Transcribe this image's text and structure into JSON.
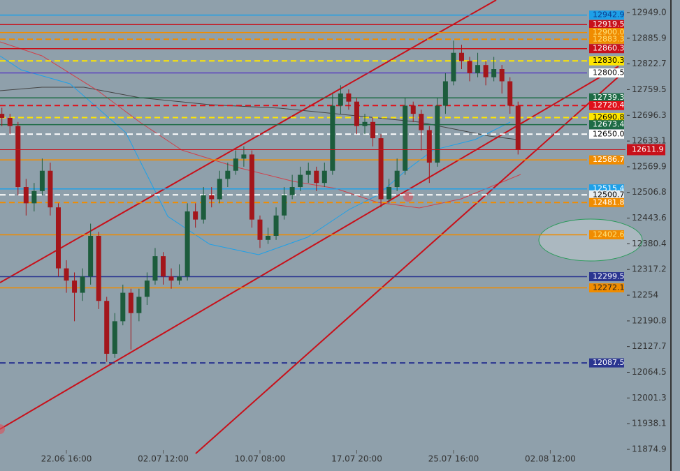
{
  "chart_data": {
    "type": "candlestick",
    "categories": [
      null,
      null,
      null,
      null,
      null,
      null,
      null,
      null,
      "22.06 16:00",
      null,
      null,
      null,
      null,
      null,
      null,
      null,
      null,
      null,
      null,
      null,
      "02.07 12:00",
      null,
      null,
      null,
      null,
      null,
      null,
      null,
      null,
      null,
      null,
      null,
      "10.07 08:00",
      null,
      null,
      null,
      null,
      null,
      null,
      null,
      null,
      null,
      null,
      null,
      "17.07 20:00",
      null,
      null,
      null,
      null,
      null,
      null,
      null,
      null,
      null,
      null,
      null,
      "25.07 16:00",
      null,
      null,
      null,
      null,
      null,
      null,
      null,
      null,
      null,
      null,
      null,
      "02.08 12:00"
    ],
    "open": [
      12700,
      12690,
      12670,
      12520,
      12480,
      12510,
      12560,
      12470,
      12320,
      12290,
      12260,
      12300,
      12400,
      12240,
      12110,
      12190,
      12260,
      12210,
      12250,
      12290,
      12350,
      12300,
      12290,
      12300,
      12460,
      12440,
      12500,
      12490,
      12540,
      12560,
      12590,
      12600,
      12440,
      12390,
      12400,
      12450,
      12500,
      12520,
      12550,
      12560,
      12530,
      12560,
      12720,
      12750,
      12730,
      12670,
      12680,
      12640,
      12490,
      12520,
      12560,
      12720,
      12700,
      12660,
      12580,
      12720,
      12780,
      12850,
      12830,
      12800,
      12820,
      12790,
      12810,
      12780,
      12720,
      null,
      null,
      null,
      null
    ],
    "high": [
      12715,
      12700,
      12680,
      12540,
      12530,
      12590,
      12580,
      12480,
      12340,
      12310,
      12320,
      12430,
      12410,
      12250,
      12210,
      12280,
      12270,
      12270,
      12310,
      12370,
      12360,
      12320,
      12330,
      12480,
      12480,
      12520,
      12520,
      12560,
      12580,
      12610,
      12620,
      12610,
      12450,
      12420,
      12470,
      12520,
      12550,
      12570,
      12580,
      12570,
      12580,
      12750,
      12770,
      12760,
      12740,
      12700,
      12690,
      12650,
      12540,
      12590,
      12740,
      12730,
      12710,
      12670,
      12740,
      12800,
      12880,
      12870,
      12840,
      12850,
      12830,
      12840,
      12820,
      12790,
      12730,
      null,
      null,
      null,
      null
    ],
    "low": [
      12670,
      12650,
      12500,
      12450,
      12460,
      12500,
      12450,
      12300,
      12260,
      12190,
      12240,
      12280,
      12220,
      12090,
      12100,
      12180,
      12120,
      12190,
      12230,
      12280,
      12280,
      12270,
      12280,
      12290,
      12420,
      12430,
      12470,
      12480,
      12520,
      12550,
      12570,
      12420,
      12370,
      12380,
      12390,
      12440,
      12490,
      12510,
      12530,
      12510,
      12520,
      12550,
      12700,
      12710,
      12650,
      12650,
      12620,
      12470,
      12480,
      12510,
      12550,
      12680,
      12610,
      12530,
      12570,
      12700,
      12770,
      12810,
      12780,
      12790,
      12770,
      12780,
      12750,
      12700,
      12600,
      null,
      null,
      null,
      null
    ],
    "close": [
      12690,
      12670,
      12520,
      12480,
      12510,
      12560,
      12470,
      12320,
      12290,
      12260,
      12300,
      12400,
      12240,
      12110,
      12190,
      12260,
      12210,
      12250,
      12290,
      12350,
      12300,
      12290,
      12300,
      12460,
      12440,
      12500,
      12490,
      12540,
      12560,
      12590,
      12600,
      12440,
      12390,
      12400,
      12450,
      12500,
      12520,
      12550,
      12560,
      12530,
      12560,
      12720,
      12750,
      12730,
      12670,
      12680,
      12640,
      12490,
      12520,
      12560,
      12720,
      12700,
      12660,
      12580,
      12720,
      12780,
      12850,
      12830,
      12800,
      12820,
      12790,
      12810,
      12780,
      12720,
      12611.9,
      null,
      null,
      null,
      null
    ],
    "up_color": "#1c5c3c",
    "down_color": "#a3161b",
    "ylim": [
      11873.2,
      12979.9
    ],
    "yticks": [
      {
        "value": 12949,
        "label": "12949.0"
      },
      12885.9,
      12822.7,
      12759.5,
      12696.3,
      12633.1,
      12569.9,
      12506.8,
      12443.6,
      12380.4,
      12317.2,
      12254.0,
      12190.8,
      12127.7,
      12064.5,
      12001.3,
      11938.1,
      11874.9
    ],
    "last_price": {
      "value": 12611.9,
      "color": "#c8101a"
    },
    "levels": [
      {
        "value": 12942.9,
        "color": "#1ea0e8",
        "dashed": false,
        "label_bg": "#1ea0e8",
        "label_fg": "#0d3c8c"
      },
      {
        "value": 12919.5,
        "color": "#c8101a",
        "dashed": false,
        "label_bg": "#c8101a",
        "label_fg": "#ffffff"
      },
      {
        "value": 12900,
        "label": "12900.0",
        "color": "#f08c00",
        "dashed": false,
        "label_bg": "#f08c00",
        "label_fg": "#ffe27a"
      },
      {
        "value": 12883.3,
        "color": "#f08c00",
        "dashed": true,
        "label_bg": "#f08c00",
        "label_fg": "#ffe27a"
      },
      {
        "value": 12860.3,
        "color": "#c8101a",
        "dashed": false,
        "label_bg": "#c8101a",
        "label_fg": "#ffffff"
      },
      {
        "value": 12830.3,
        "color": "#ffe600",
        "dashed": true,
        "label_bg": "#ffe600",
        "label_fg": "#000000"
      },
      {
        "value": 12800.5,
        "color": "#5a3fc0",
        "dashed": false,
        "label_bg": "#ffffff",
        "label_fg": "#000000"
      },
      {
        "value": 12739.3,
        "color": "#1d6b45",
        "dashed": false,
        "label_bg": "#1d6b45",
        "label_fg": "#ffffff"
      },
      {
        "value": 12720.4,
        "color": "#e0101a",
        "dashed": true,
        "label_bg": "#e0101a",
        "label_fg": "#ffffff"
      },
      {
        "value": 12690.8,
        "color": "#ffe600",
        "dashed": true,
        "label_bg": "#ffe600",
        "label_fg": "#000000"
      },
      {
        "value": 12673.4,
        "color": "#1d6b45",
        "dashed": false,
        "label_bg": "#1d6b45",
        "label_fg": "#ffffff"
      },
      {
        "value": 12650,
        "label": "12650.0",
        "color": "#ffffff",
        "dashed": true,
        "label_bg": "#ffffff",
        "label_fg": "#000000"
      },
      {
        "value": 12586.7,
        "color": "#f08c00",
        "dashed": false,
        "label_bg": "#f08c00",
        "label_fg": "#ffffff"
      },
      {
        "value": 12515.4,
        "color": "#1ea0e8",
        "dashed": false,
        "label_bg": "#1ea0e8",
        "label_fg": "#ffffff"
      },
      {
        "value": 12500.7,
        "color": "#ffffff",
        "dashed": true,
        "label_bg": "#e8ecef",
        "label_fg": "#000000"
      },
      {
        "value": 12481.8,
        "color": "#f08c00",
        "dashed": true,
        "label_bg": "#f08c00",
        "label_fg": "#ffffff"
      },
      {
        "value": 12402.6,
        "color": "#f08c00",
        "dashed": false,
        "label_bg": "#f08c00",
        "label_fg": "#ffe27a"
      },
      {
        "value": 12299.5,
        "color": "#2a3590",
        "dashed": false,
        "label_bg": "#2a3590",
        "label_fg": "#ffffff"
      },
      {
        "value": 12272.1,
        "color": "#f08c00",
        "dashed": false,
        "label_bg": "#f08c00",
        "label_fg": "#222222"
      },
      {
        "value": 12087.5,
        "color": "#2a3590",
        "dashed": true,
        "label_bg": "#2a3590",
        "label_fg": "#ffffff"
      }
    ]
  }
}
